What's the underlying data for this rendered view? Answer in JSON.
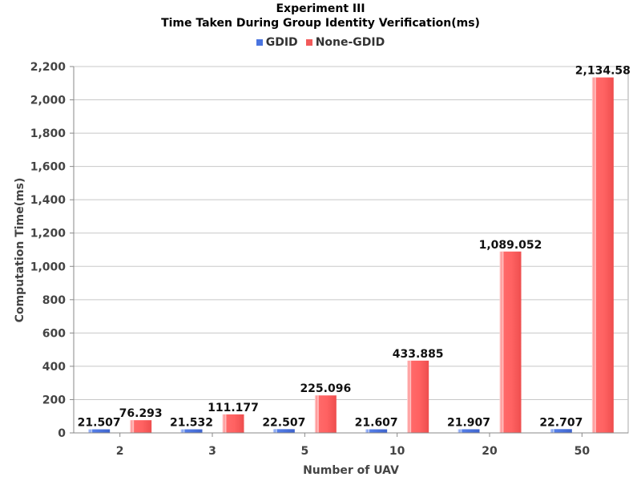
{
  "chart_data": {
    "type": "bar",
    "title": "Experiment III",
    "subtitle": "Time Taken During Group Identity Verification(ms)",
    "xlabel": "Number of UAV",
    "ylabel": "Computation Time(ms)",
    "categories": [
      "2",
      "3",
      "5",
      "10",
      "20",
      "50"
    ],
    "ylim": [
      0,
      2200
    ],
    "yticks": [
      0,
      200,
      400,
      600,
      800,
      1000,
      1200,
      1400,
      1600,
      1800,
      2000,
      2200
    ],
    "ytick_labels": [
      "0",
      "200",
      "400",
      "600",
      "800",
      "1,000",
      "1,200",
      "1,400",
      "1,600",
      "1,800",
      "2,000",
      "2,200"
    ],
    "grid": true,
    "legend_position": "top",
    "series": [
      {
        "name": "GDID",
        "color": "#4a74e0",
        "values": [
          21.507,
          21.532,
          22.507,
          21.607,
          21.907,
          22.707
        ],
        "labels": [
          "21.507",
          "21.532",
          "22.507",
          "21.607",
          "21.907",
          "22.707"
        ]
      },
      {
        "name": "None-GDID",
        "color": "#f25a5a",
        "values": [
          76.293,
          111.177,
          225.096,
          433.885,
          1089.052,
          2134.58
        ],
        "labels": [
          "76.293",
          "111.177",
          "225.096",
          "433.885",
          "1,089.052",
          "2,134.58"
        ]
      }
    ]
  }
}
